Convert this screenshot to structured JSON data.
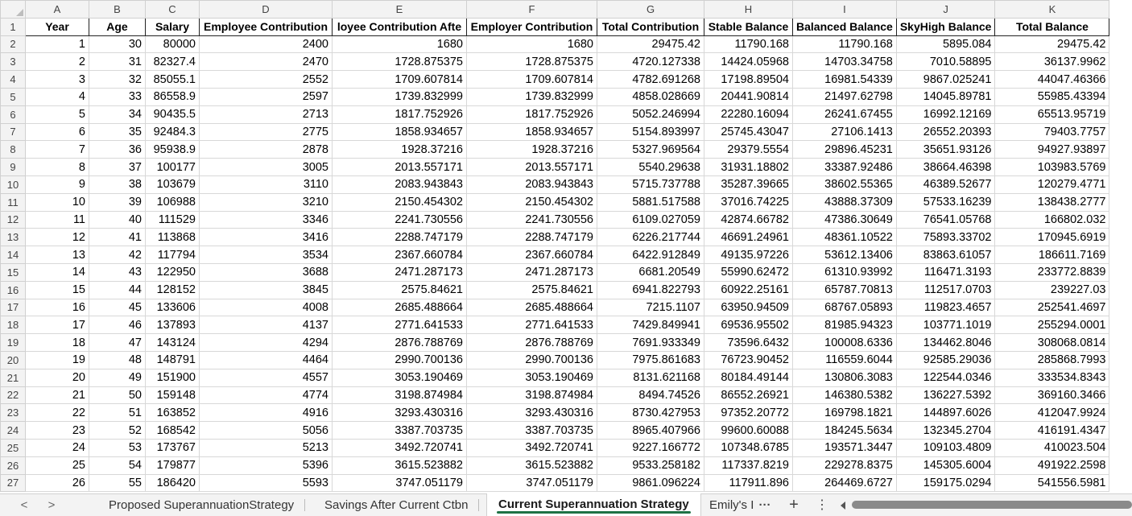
{
  "columns": [
    "A",
    "B",
    "C",
    "D",
    "E",
    "F",
    "G",
    "H",
    "I",
    "J",
    "K"
  ],
  "headers": [
    "Year",
    "Age",
    "Salary",
    "Employee Contribution",
    "loyee Contribution Afte",
    "Employer Contribution",
    "Total Contribution",
    "Stable Balance",
    "Balanced Balance",
    "SkyHigh Balance",
    "Total Balance"
  ],
  "rows": [
    {
      "row": "2",
      "cells": [
        "1",
        "30",
        "80000",
        "2400",
        "1680",
        "1680",
        "29475.42",
        "11790.168",
        "11790.168",
        "5895.084",
        "29475.42"
      ]
    },
    {
      "row": "3",
      "cells": [
        "2",
        "31",
        "82327.4",
        "2470",
        "1728.875375",
        "1728.875375",
        "4720.127338",
        "14424.05968",
        "14703.34758",
        "7010.58895",
        "36137.9962"
      ]
    },
    {
      "row": "4",
      "cells": [
        "3",
        "32",
        "85055.1",
        "2552",
        "1709.607814",
        "1709.607814",
        "4782.691268",
        "17198.89504",
        "16981.54339",
        "9867.025241",
        "44047.46366"
      ]
    },
    {
      "row": "5",
      "cells": [
        "4",
        "33",
        "86558.9",
        "2597",
        "1739.832999",
        "1739.832999",
        "4858.028669",
        "20441.90814",
        "21497.62798",
        "14045.89781",
        "55985.43394"
      ]
    },
    {
      "row": "6",
      "cells": [
        "5",
        "34",
        "90435.5",
        "2713",
        "1817.752926",
        "1817.752926",
        "5052.246994",
        "22280.16094",
        "26241.67455",
        "16992.12169",
        "65513.95719"
      ]
    },
    {
      "row": "7",
      "cells": [
        "6",
        "35",
        "92484.3",
        "2775",
        "1858.934657",
        "1858.934657",
        "5154.893997",
        "25745.43047",
        "27106.1413",
        "26552.20393",
        "79403.7757"
      ]
    },
    {
      "row": "8",
      "cells": [
        "7",
        "36",
        "95938.9",
        "2878",
        "1928.37216",
        "1928.37216",
        "5327.969564",
        "29379.5554",
        "29896.45231",
        "35651.93126",
        "94927.93897"
      ]
    },
    {
      "row": "9",
      "cells": [
        "8",
        "37",
        "100177",
        "3005",
        "2013.557171",
        "2013.557171",
        "5540.29638",
        "31931.18802",
        "33387.92486",
        "38664.46398",
        "103983.5769"
      ]
    },
    {
      "row": "10",
      "cells": [
        "9",
        "38",
        "103679",
        "3110",
        "2083.943843",
        "2083.943843",
        "5715.737788",
        "35287.39665",
        "38602.55365",
        "46389.52677",
        "120279.4771"
      ]
    },
    {
      "row": "11",
      "cells": [
        "10",
        "39",
        "106988",
        "3210",
        "2150.454302",
        "2150.454302",
        "5881.517588",
        "37016.74225",
        "43888.37309",
        "57533.16239",
        "138438.2777"
      ]
    },
    {
      "row": "12",
      "cells": [
        "11",
        "40",
        "111529",
        "3346",
        "2241.730556",
        "2241.730556",
        "6109.027059",
        "42874.66782",
        "47386.30649",
        "76541.05768",
        "166802.032"
      ]
    },
    {
      "row": "13",
      "cells": [
        "12",
        "41",
        "113868",
        "3416",
        "2288.747179",
        "2288.747179",
        "6226.217744",
        "46691.24961",
        "48361.10522",
        "75893.33702",
        "170945.6919"
      ]
    },
    {
      "row": "14",
      "cells": [
        "13",
        "42",
        "117794",
        "3534",
        "2367.660784",
        "2367.660784",
        "6422.912849",
        "49135.97226",
        "53612.13406",
        "83863.61057",
        "186611.7169"
      ]
    },
    {
      "row": "15",
      "cells": [
        "14",
        "43",
        "122950",
        "3688",
        "2471.287173",
        "2471.287173",
        "6681.20549",
        "55990.62472",
        "61310.93992",
        "116471.3193",
        "233772.8839"
      ]
    },
    {
      "row": "16",
      "cells": [
        "15",
        "44",
        "128152",
        "3845",
        "2575.84621",
        "2575.84621",
        "6941.822793",
        "60922.25161",
        "65787.70813",
        "112517.0703",
        "239227.03"
      ]
    },
    {
      "row": "17",
      "cells": [
        "16",
        "45",
        "133606",
        "4008",
        "2685.488664",
        "2685.488664",
        "7215.1107",
        "63950.94509",
        "68767.05893",
        "119823.4657",
        "252541.4697"
      ]
    },
    {
      "row": "18",
      "cells": [
        "17",
        "46",
        "137893",
        "4137",
        "2771.641533",
        "2771.641533",
        "7429.849941",
        "69536.95502",
        "81985.94323",
        "103771.1019",
        "255294.0001"
      ]
    },
    {
      "row": "19",
      "cells": [
        "18",
        "47",
        "143124",
        "4294",
        "2876.788769",
        "2876.788769",
        "7691.933349",
        "73596.6432",
        "100008.6336",
        "134462.8046",
        "308068.0814"
      ]
    },
    {
      "row": "20",
      "cells": [
        "19",
        "48",
        "148791",
        "4464",
        "2990.700136",
        "2990.700136",
        "7975.861683",
        "76723.90452",
        "116559.6044",
        "92585.29036",
        "285868.7993"
      ]
    },
    {
      "row": "21",
      "cells": [
        "20",
        "49",
        "151900",
        "4557",
        "3053.190469",
        "3053.190469",
        "8131.621168",
        "80184.49144",
        "130806.3083",
        "122544.0346",
        "333534.8343"
      ]
    },
    {
      "row": "22",
      "cells": [
        "21",
        "50",
        "159148",
        "4774",
        "3198.874984",
        "3198.874984",
        "8494.74526",
        "86552.26921",
        "146380.5382",
        "136227.5392",
        "369160.3466"
      ]
    },
    {
      "row": "23",
      "cells": [
        "22",
        "51",
        "163852",
        "4916",
        "3293.430316",
        "3293.430316",
        "8730.427953",
        "97352.20772",
        "169798.1821",
        "144897.6026",
        "412047.9924"
      ]
    },
    {
      "row": "24",
      "cells": [
        "23",
        "52",
        "168542",
        "5056",
        "3387.703735",
        "3387.703735",
        "8965.407966",
        "99600.60088",
        "184245.5634",
        "132345.2704",
        "416191.4347"
      ]
    },
    {
      "row": "25",
      "cells": [
        "24",
        "53",
        "173767",
        "5213",
        "3492.720741",
        "3492.720741",
        "9227.166772",
        "107348.6785",
        "193571.3447",
        "109103.4809",
        "410023.504"
      ]
    },
    {
      "row": "26",
      "cells": [
        "25",
        "54",
        "179877",
        "5396",
        "3615.523882",
        "3615.523882",
        "9533.258182",
        "117337.8219",
        "229278.8375",
        "145305.6004",
        "491922.2598"
      ]
    },
    {
      "row": "27",
      "cells": [
        "26",
        "55",
        "186420",
        "5593",
        "3747.051179",
        "3747.051179",
        "9861.096224",
        "117911.896",
        "264469.6727",
        "159175.0294",
        "541556.5981"
      ]
    }
  ],
  "tabs": {
    "nav_prev": "<",
    "nav_next": ">",
    "items": [
      {
        "label": "Proposed SuperannuationStrategy"
      },
      {
        "label": "Savings After Current Ctbn"
      },
      {
        "label": "Current Superannuation Strategy"
      },
      {
        "label": "Emily's I"
      }
    ],
    "more_label": "···",
    "add_label": "+",
    "options_label": "⋮"
  }
}
